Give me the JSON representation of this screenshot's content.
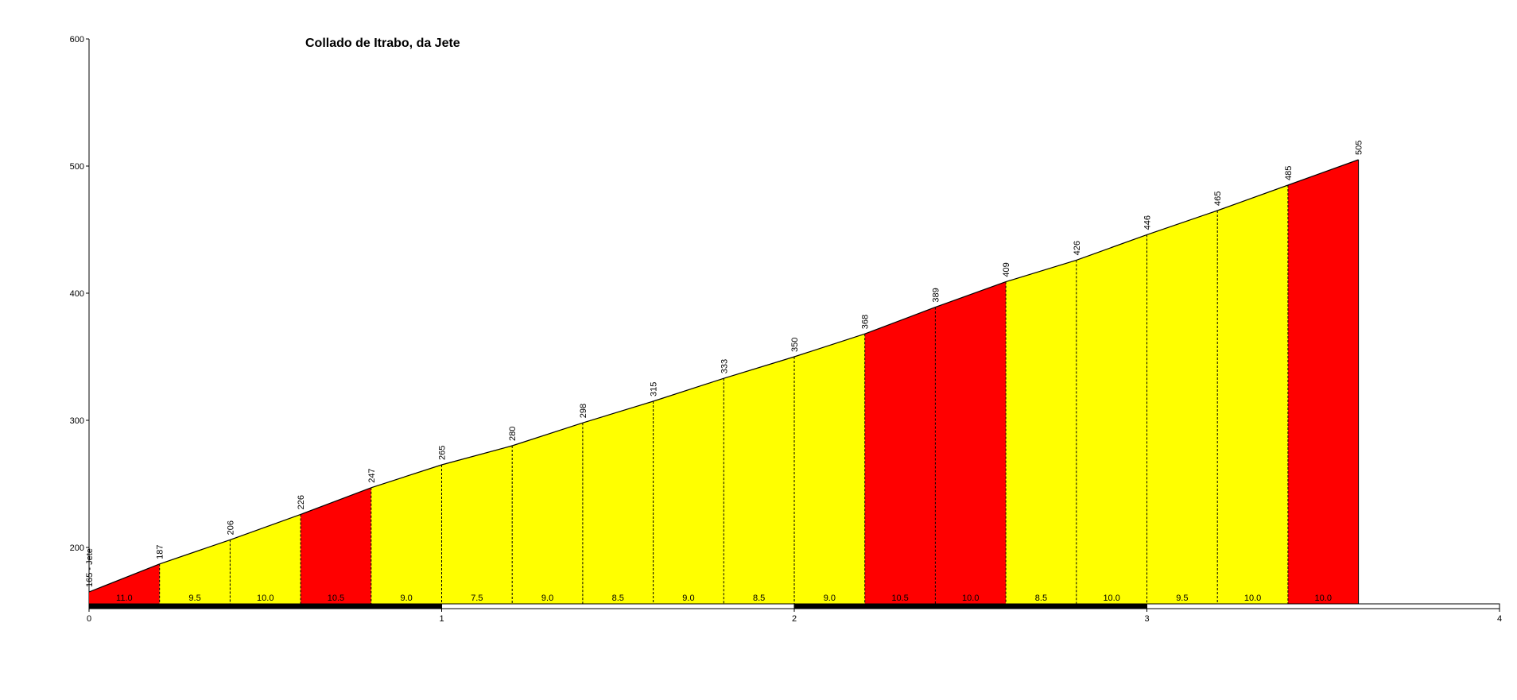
{
  "chart_data": {
    "type": "area",
    "title": "Collado de Itrabo, da Jete",
    "xlabel": "",
    "ylabel": "",
    "xlim": [
      0,
      4
    ],
    "ylim": [
      155,
      600
    ],
    "x_ticks": [
      0,
      1,
      2,
      3,
      4
    ],
    "y_ticks": [
      200,
      300,
      400,
      500,
      600
    ],
    "x": [
      0,
      0.2,
      0.4,
      0.6,
      0.8,
      1.0,
      1.2,
      1.4,
      1.6,
      1.8,
      2.0,
      2.2,
      2.4,
      2.6,
      2.8,
      3.0,
      3.2,
      3.4,
      3.6
    ],
    "elevations": [
      165,
      187,
      206,
      226,
      247,
      265,
      280,
      298,
      315,
      333,
      350,
      368,
      389,
      409,
      426,
      446,
      465,
      485,
      505
    ],
    "point_labels": [
      "165 - Jete",
      "187",
      "206",
      "226",
      "247",
      "265",
      "280",
      "298",
      "315",
      "333",
      "350",
      "368",
      "389",
      "409",
      "426",
      "446",
      "465",
      "485",
      "505"
    ],
    "gradients": [
      "11.0",
      "9.5",
      "10.0",
      "10.5",
      "9.0",
      "7.5",
      "9.0",
      "8.5",
      "9.0",
      "8.5",
      "9.0",
      "10.5",
      "10.0",
      "8.5",
      "10.0",
      "9.5",
      "10.0",
      "10.0"
    ],
    "segment_colors": [
      "#ff0000",
      "#ffff00",
      "#ffff00",
      "#ff0000",
      "#ffff00",
      "#ffff00",
      "#ffff00",
      "#ffff00",
      "#ffff00",
      "#ffff00",
      "#ffff00",
      "#ff0000",
      "#ff0000",
      "#ffff00",
      "#ffff00",
      "#ffff00",
      "#ffff00",
      "#ff0000"
    ],
    "km_bar_colors": [
      "#000000",
      "#ffffff",
      "#000000",
      "#ffffff"
    ],
    "grid": false
  }
}
